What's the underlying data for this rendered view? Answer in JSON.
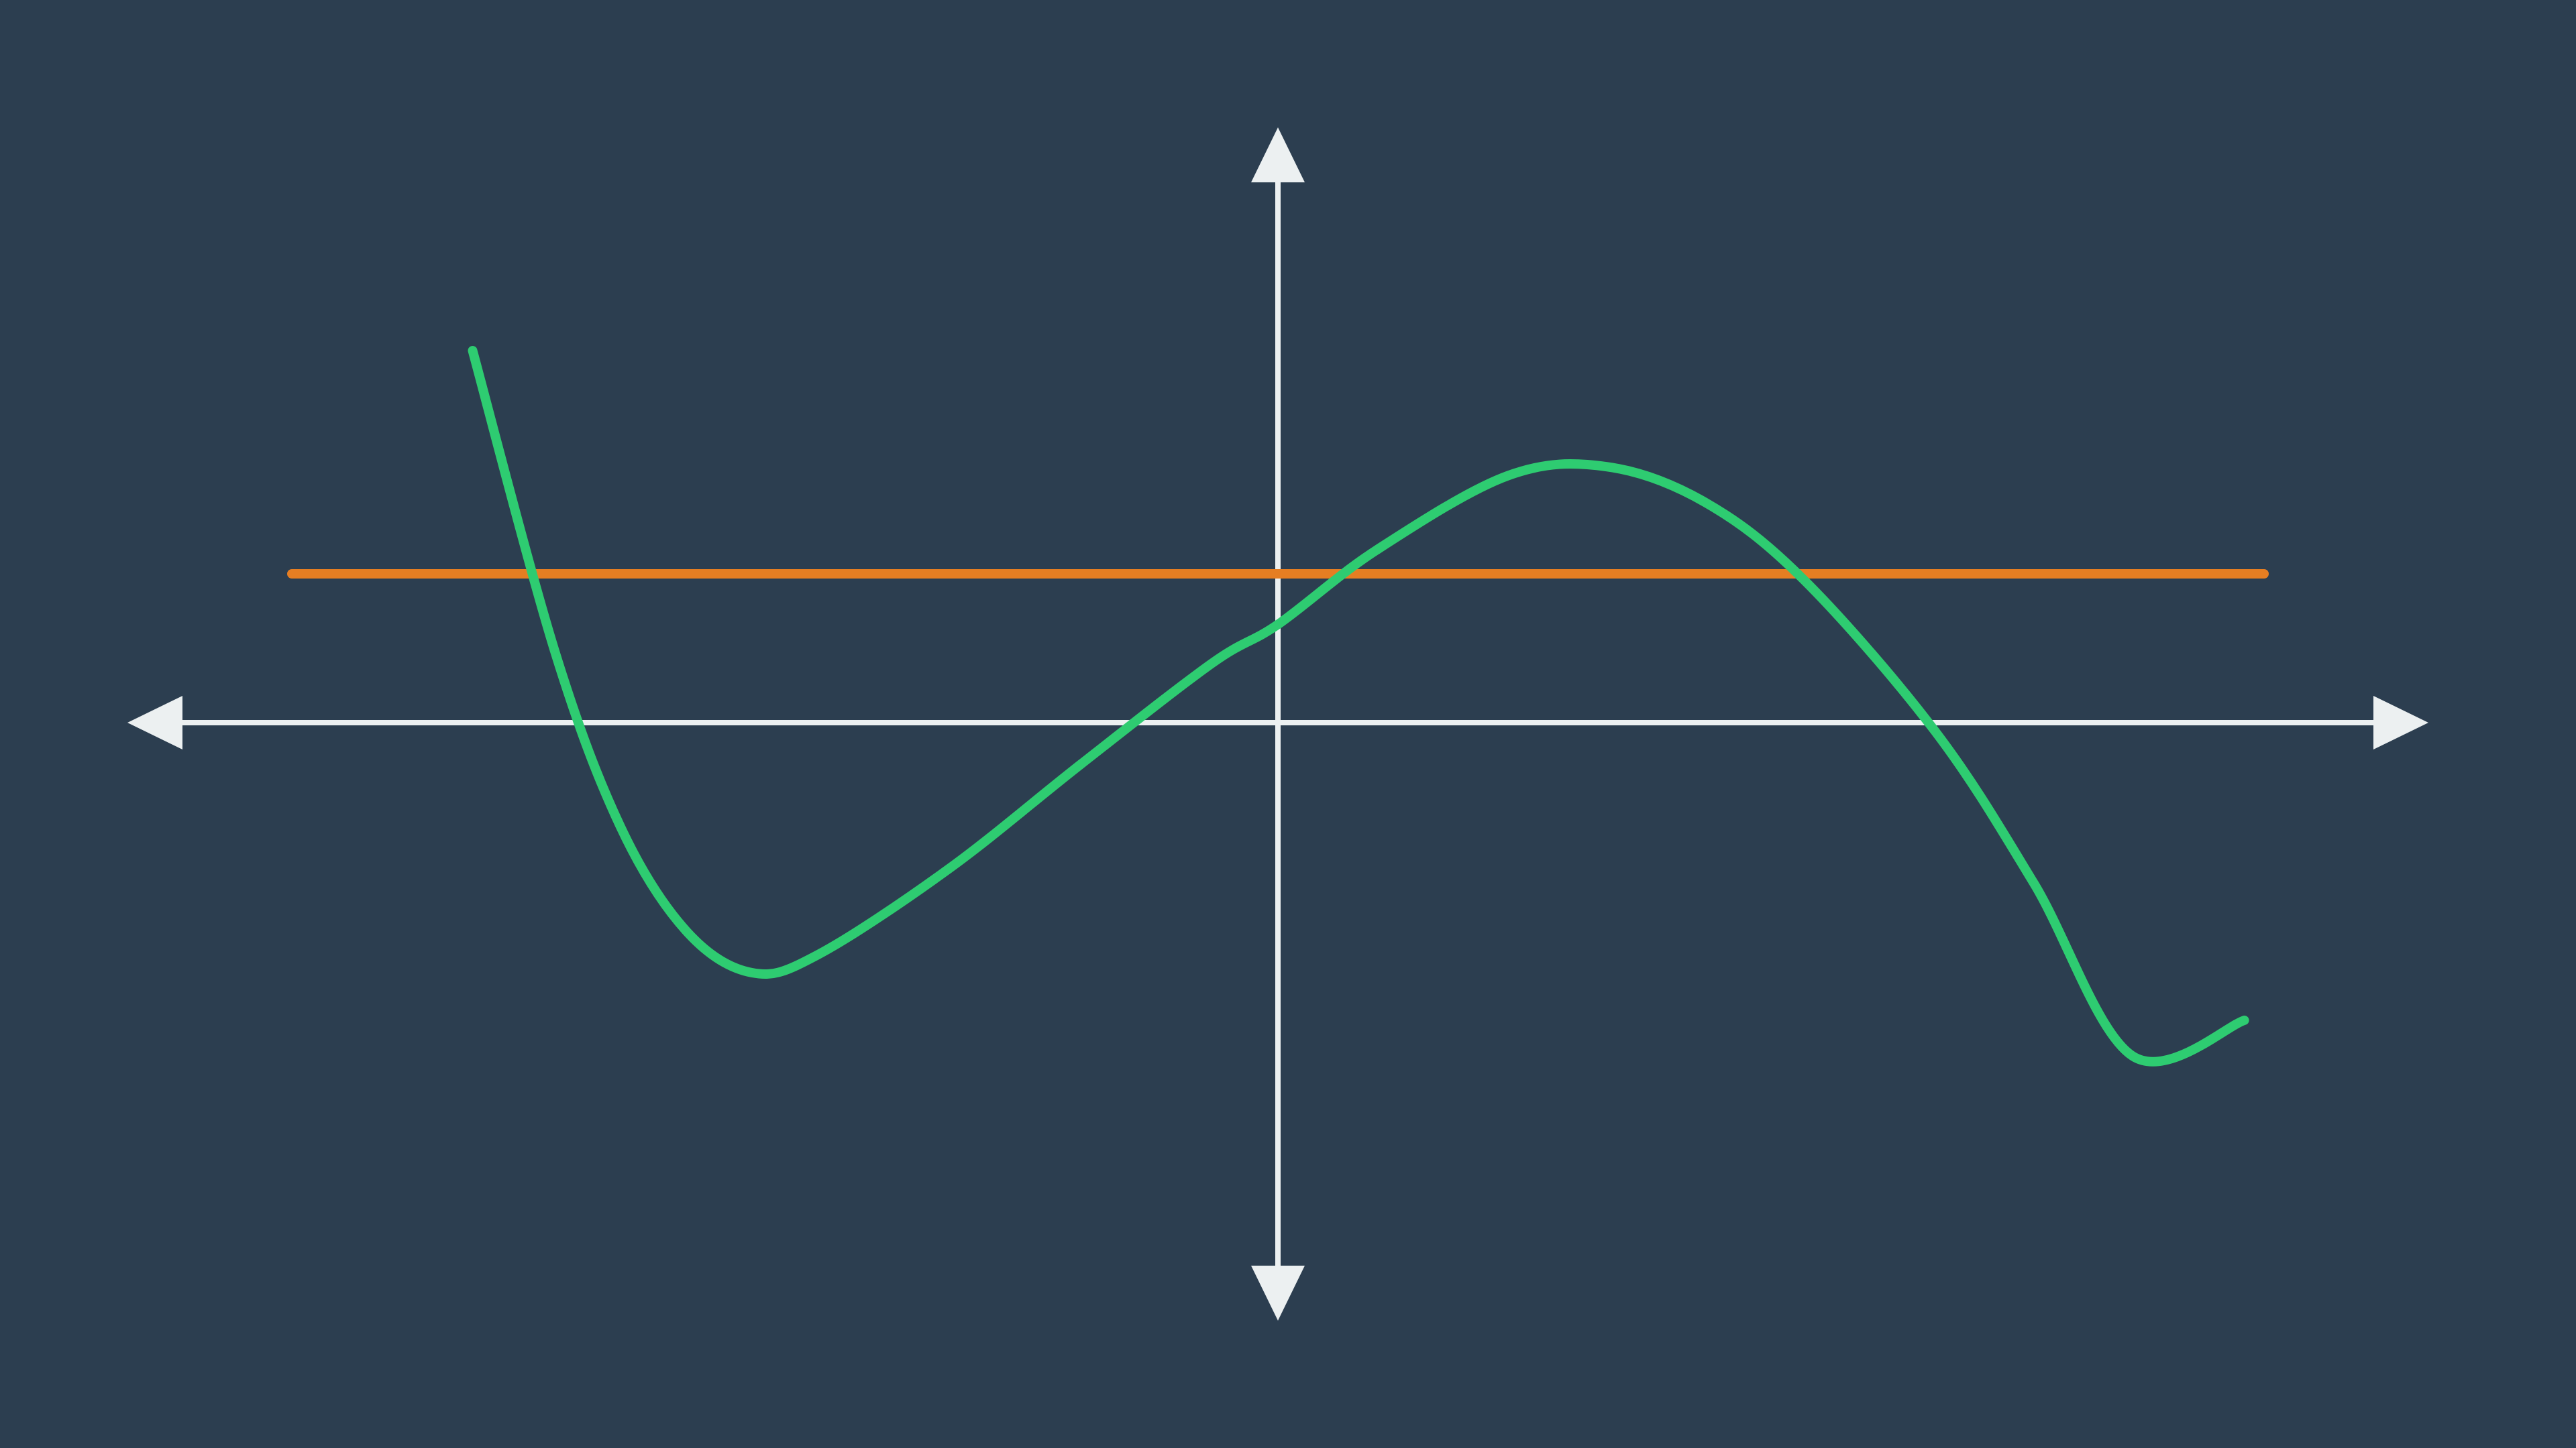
{
  "chart_data": {
    "type": "line",
    "title": "",
    "xlabel": "",
    "ylabel": "",
    "background_color": "#2c3e50",
    "axis_color": "#ecf0f1",
    "grid": false,
    "axis_style": "centered cross-hair axes with arrowheads on all four ends",
    "xlim": [
      -3.5,
      3.5
    ],
    "ylim": [
      -2.0,
      2.0
    ],
    "x_ticks": [],
    "y_ticks": [],
    "legend": "none",
    "series": [
      {
        "kind": "cubic curve",
        "color": "#2ecc71",
        "x": [
          -2.45,
          -2.2,
          -2.0,
          -1.8,
          -1.6,
          -1.4,
          -1.0,
          -0.6,
          -0.2,
          0.0,
          0.3,
          0.7,
          1.0,
          1.3,
          1.6,
          2.0,
          2.3,
          2.6,
          2.94
        ],
        "y": [
          1.25,
          0.24,
          -0.35,
          -0.7,
          -0.84,
          -0.78,
          -0.49,
          -0.14,
          0.2,
          0.33,
          0.58,
          0.83,
          0.86,
          0.74,
          0.48,
          -0.03,
          -0.54,
          -1.12,
          -1.0
        ]
      },
      {
        "kind": "horizontal line",
        "color": "#e67e22",
        "x": [
          -3.0,
          3.0
        ],
        "y": [
          0.5,
          0.5
        ]
      }
    ]
  }
}
